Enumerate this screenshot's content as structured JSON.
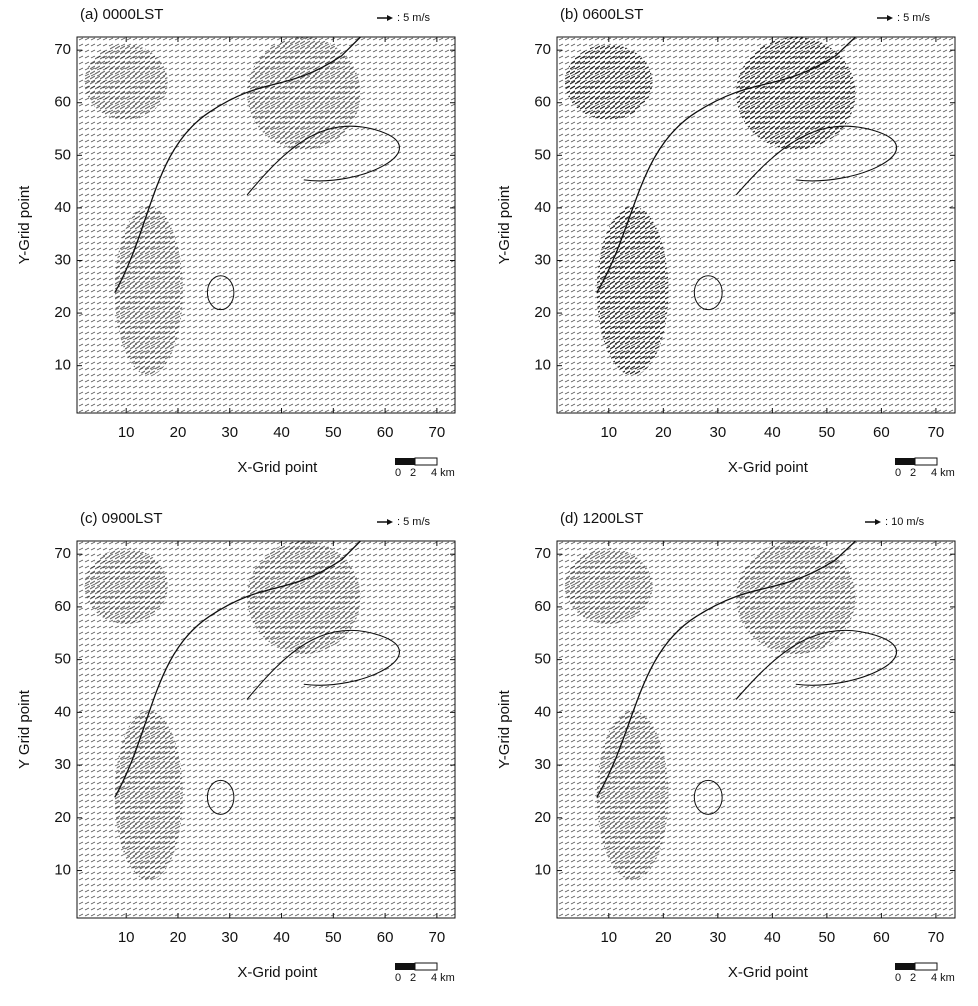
{
  "chart_data": [
    {
      "type": "vector",
      "title": "(a) 0000LST",
      "reference_label": ": 5 m/s",
      "xlabel": "X-Grid point",
      "ylabel": "Y-Grid point",
      "distance_scale": [
        "0",
        "2",
        "4 km"
      ],
      "xlim": [
        0.5,
        73.5
      ],
      "ylim": [
        1,
        72.5
      ],
      "xticks": [
        10,
        20,
        30,
        40,
        50,
        60,
        70
      ],
      "yticks": [
        10,
        20,
        30,
        40,
        50,
        60,
        70
      ]
    },
    {
      "type": "vector",
      "title": "(b) 0600LST",
      "reference_label": ": 5 m/s",
      "xlabel": "X-Grid point",
      "ylabel": "Y-Grid point",
      "distance_scale": [
        "0",
        "2",
        "4 km"
      ],
      "xlim": [
        0.5,
        73.5
      ],
      "ylim": [
        1,
        72.5
      ],
      "xticks": [
        10,
        20,
        30,
        40,
        50,
        60,
        70
      ],
      "yticks": [
        10,
        20,
        30,
        40,
        50,
        60,
        70
      ]
    },
    {
      "type": "vector",
      "title": "(c) 0900LST",
      "reference_label": ": 5 m/s",
      "xlabel": "X-Grid point",
      "ylabel": "Y Grid point",
      "distance_scale": [
        "0",
        "2",
        "4 km"
      ],
      "xlim": [
        0.5,
        73.5
      ],
      "ylim": [
        1,
        72.5
      ],
      "xticks": [
        10,
        20,
        30,
        40,
        50,
        60,
        70
      ],
      "yticks": [
        10,
        20,
        30,
        40,
        50,
        60,
        70
      ]
    },
    {
      "type": "vector",
      "title": "(d) 1200LST",
      "reference_label": ": 10 m/s",
      "xlabel": "X-Grid point",
      "ylabel": "Y-Grid point",
      "distance_scale": [
        "0",
        "2",
        "4 km"
      ],
      "xlim": [
        0.5,
        73.5
      ],
      "ylim": [
        1,
        72.5
      ],
      "xticks": [
        10,
        20,
        30,
        40,
        50,
        60,
        70
      ],
      "yticks": [
        10,
        20,
        30,
        40,
        50,
        60,
        70
      ]
    }
  ]
}
